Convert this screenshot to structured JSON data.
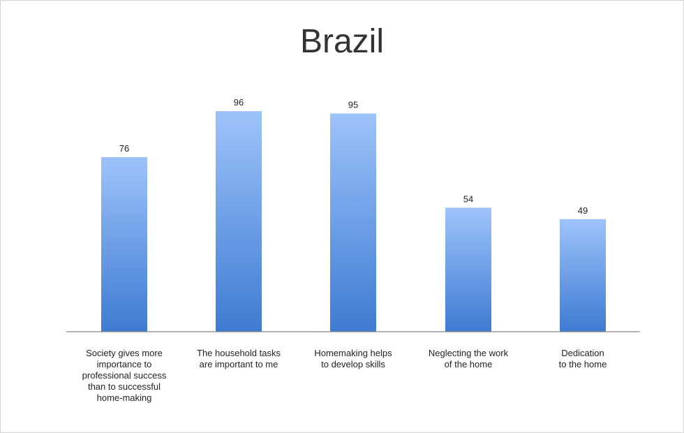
{
  "chart_data": {
    "type": "bar",
    "title": "Brazil",
    "xlabel": "",
    "ylabel": "",
    "ylim": [
      0,
      100
    ],
    "grid": false,
    "legend": "none",
    "categories": [
      [
        "Society gives more",
        "importance to",
        "professional success",
        "than to successful",
        "home-making"
      ],
      [
        "The household tasks",
        "are important to me"
      ],
      [
        "Homemaking helps",
        "to develop skills"
      ],
      [
        "Neglecting the work",
        "of the home"
      ],
      [
        "Dedication",
        "to the home"
      ]
    ],
    "values": [
      76,
      96,
      95,
      54,
      49
    ],
    "value_labels": [
      "76",
      "96",
      "95",
      "54",
      "49"
    ],
    "colors": {
      "bar_top": "#9ec3fb",
      "bar_bottom": "#3e7bd1",
      "axis": "#888888"
    }
  }
}
